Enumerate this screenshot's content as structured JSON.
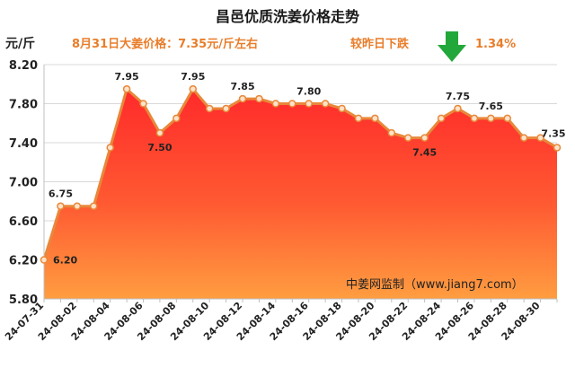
{
  "chart_data": {
    "type": "area",
    "title": "昌邑优质洗姜价格走势",
    "ylabel": "元/斤",
    "ylim": [
      5.8,
      8.2
    ],
    "yticks": [
      "5.80",
      "6.20",
      "6.60",
      "7.00",
      "7.40",
      "7.80",
      "8.20"
    ],
    "grid": true,
    "x": [
      "24-07-31",
      "24-08-01",
      "24-08-02",
      "24-08-03",
      "24-08-04",
      "24-08-05",
      "24-08-06",
      "24-08-07",
      "24-08-08",
      "24-08-09",
      "24-08-10",
      "24-08-11",
      "24-08-12",
      "24-08-13",
      "24-08-14",
      "24-08-15",
      "24-08-16",
      "24-08-17",
      "24-08-18",
      "24-08-19",
      "24-08-20",
      "24-08-21",
      "24-08-22",
      "24-08-23",
      "24-08-24",
      "24-08-25",
      "24-08-26",
      "24-08-27",
      "24-08-28",
      "24-08-29",
      "24-08-30",
      "24-08-31"
    ],
    "xtick_labels": [
      "24-07-31",
      "24-08-02",
      "24-08-04",
      "24-08-06",
      "24-08-08",
      "24-08-10",
      "24-08-12",
      "24-08-14",
      "24-08-16",
      "24-08-18",
      "24-08-20",
      "24-08-22",
      "24-08-24",
      "24-08-26",
      "24-08-28",
      "24-08-30"
    ],
    "values": [
      6.2,
      6.75,
      6.75,
      6.75,
      7.35,
      7.95,
      7.8,
      7.5,
      7.65,
      7.95,
      7.75,
      7.75,
      7.85,
      7.85,
      7.8,
      7.8,
      7.8,
      7.8,
      7.75,
      7.65,
      7.65,
      7.5,
      7.45,
      7.45,
      7.65,
      7.75,
      7.65,
      7.65,
      7.65,
      7.45,
      7.45,
      7.35
    ],
    "data_labels": [
      {
        "index": 0,
        "text": "6.20"
      },
      {
        "index": 1,
        "text": "6.75"
      },
      {
        "index": 5,
        "text": "7.95"
      },
      {
        "index": 7,
        "text": "7.50"
      },
      {
        "index": 9,
        "text": "7.95"
      },
      {
        "index": 12,
        "text": "7.85"
      },
      {
        "index": 16,
        "text": "7.80"
      },
      {
        "index": 23,
        "text": "7.45"
      },
      {
        "index": 25,
        "text": "7.75"
      },
      {
        "index": 27,
        "text": "7.65"
      },
      {
        "index": 31,
        "text": "7.35"
      }
    ],
    "annotations": {
      "price_note": "8月31日大姜价格：7.35元/斤左右",
      "change_note": "较昨日下跌",
      "change_value": "1.34%",
      "watermark": "中姜网监制（www.jiang7.com）"
    },
    "colors": {
      "line": "#e8883a",
      "marker_fill": "#fde2c8",
      "area_top": "#ff2a2a",
      "area_bottom": "#ff9d40",
      "arrow": "#22a83a",
      "info_text": "#e87d2a"
    }
  }
}
